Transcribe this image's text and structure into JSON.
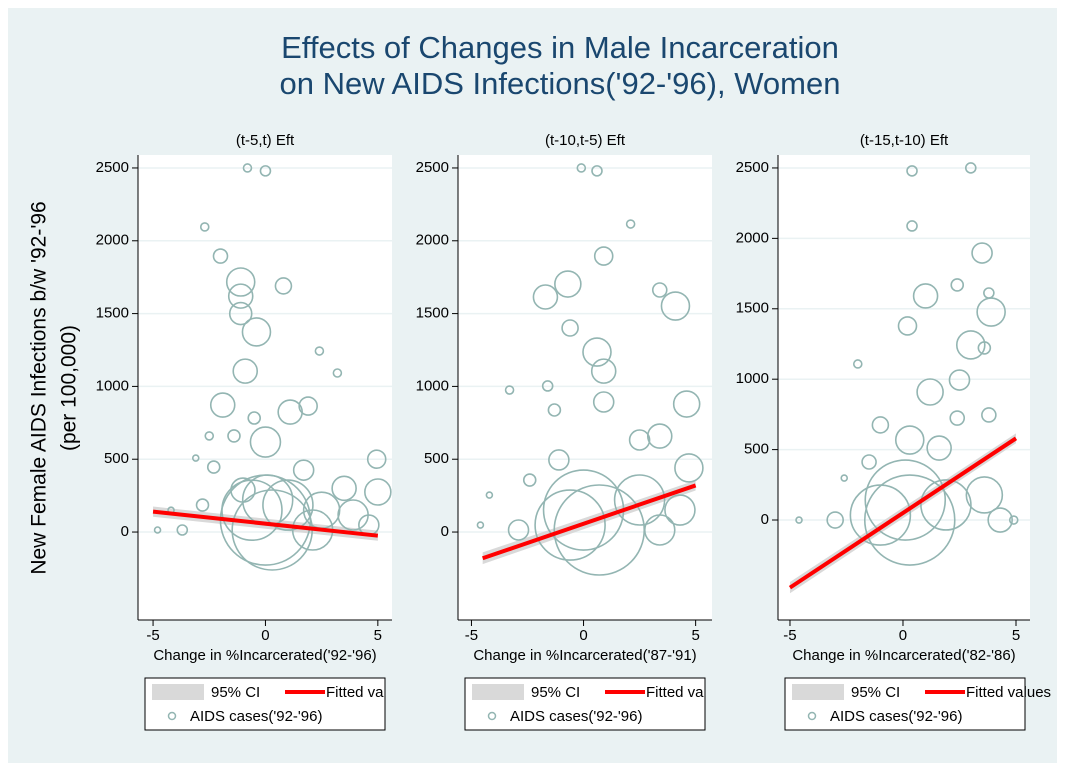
{
  "figure": {
    "title": [
      "Effects of Changes in Male Incarceration",
      "on New AIDS Infections('92-'96), Women"
    ],
    "y_label": [
      "New Female AIDS Infections b/w '92-'96",
      "(per 100,000)"
    ]
  },
  "chart_data": [
    {
      "type": "scatter",
      "title": "(t-5,t) Eft",
      "x_label": "Change in %Incarcerated('92-'96)",
      "xlim": [
        -5.67,
        5.63
      ],
      "ylim": [
        -604,
        2589
      ],
      "xticks": [
        -5,
        0,
        5
      ],
      "yticks": [
        0,
        500,
        1000,
        1500,
        2000,
        2500
      ],
      "grid": true,
      "series": [
        {
          "name": "95% CI",
          "color": "#d9d9d9",
          "x": [
            -5,
            5
          ],
          "lower": [
            105,
            -60
          ],
          "upper": [
            175,
            10
          ]
        },
        {
          "name": "Fitted values",
          "color": "#ff0000",
          "x": [
            -5,
            5
          ],
          "values": [
            140,
            -25
          ]
        },
        {
          "name": "AIDS cases('92-'96)",
          "color": "#93b5b2",
          "x": [
            -0.8,
            0,
            -2.7,
            -2,
            -1.1,
            -1.1,
            -1.1,
            -0.4,
            0.8,
            2.4,
            3.2,
            -0.9,
            -1.9,
            -0.5,
            1.1,
            1.9,
            -1.4,
            -2.5,
            0,
            -2.3,
            -3.1,
            4.95,
            5,
            3.5,
            1.7,
            -1,
            0.1,
            0,
            0.3,
            -0.6,
            1,
            2.5,
            3.9,
            2.1,
            -3.7,
            -4.8,
            -4.2,
            -2.8,
            4.6
          ],
          "values": [
            2500,
            2480,
            2095,
            1895,
            1717,
            1620,
            1500,
            1374,
            1690,
            1243,
            1092,
            1105,
            872,
            783,
            824,
            865,
            660,
            660,
            618,
            446,
            508,
            500,
            275,
            300,
            425,
            288,
            220,
            82,
            14,
            150,
            185,
            150,
            117,
            14,
            14,
            14,
            150,
            185,
            48
          ],
          "sizes": [
            16,
            25,
            16,
            49,
            196,
            144,
            121,
            196,
            64,
            16,
            16,
            144,
            144,
            36,
            144,
            81,
            36,
            16,
            225,
            36,
            9,
            81,
            169,
            144,
            100,
            144,
            625,
            2025,
            1600,
            900,
            625,
            324,
            225,
            400,
            25,
            9,
            9,
            36,
            100
          ]
        }
      ]
    },
    {
      "type": "scatter",
      "title": "(t-10,t-5) Eft",
      "x_label": "Change in %Incarcerated('87-'91)",
      "xlim": [
        -5.6,
        5.73
      ],
      "ylim": [
        -604,
        2589
      ],
      "xticks": [
        -5,
        0,
        5
      ],
      "yticks": [
        0,
        500,
        1000,
        1500,
        2000,
        2500
      ],
      "grid": true,
      "series": [
        {
          "name": "95% CI",
          "color": "#d9d9d9",
          "x": [
            -4.5,
            5
          ],
          "lower": [
            -220,
            285
          ],
          "upper": [
            -140,
            355
          ]
        },
        {
          "name": "Fitted values",
          "color": "#ff0000",
          "x": [
            -4.5,
            5
          ],
          "values": [
            -180,
            320
          ]
        },
        {
          "name": "AIDS cases('92-'96)",
          "color": "#93b5b2",
          "x": [
            -0.1,
            0.6,
            2.1,
            0.9,
            -0.7,
            -1.7,
            4.1,
            3.4,
            -0.6,
            0.6,
            0.9,
            -3.3,
            -1.6,
            4.6,
            -1.3,
            0.9,
            2.5,
            3.4,
            4.7,
            -1.1,
            -2.4,
            -4.2,
            0,
            0.7,
            -0.6,
            2.5,
            4.3,
            -2.9,
            -4.6,
            3.4
          ],
          "values": [
            2500,
            2480,
            2115,
            1895,
            1703,
            1614,
            1552,
            1662,
            1401,
            1236,
            1105,
            975,
            1003,
            879,
            838,
            893,
            632,
            659,
            440,
            495,
            357,
            254,
            151,
            14,
            48,
            220,
            151,
            14,
            48,
            14
          ],
          "sizes": [
            16,
            25,
            16,
            81,
            169,
            144,
            196,
            49,
            64,
            196,
            144,
            16,
            25,
            169,
            36,
            100,
            100,
            144,
            196,
            100,
            36,
            9,
            1600,
            2025,
            1225,
            625,
            225,
            100,
            9,
            225
          ]
        }
      ]
    },
    {
      "type": "scatter",
      "title": "(t-15,t-10) Eft",
      "x_label": "Change in %Incarcerated('82-'86)",
      "xlim": [
        -5.53,
        5.62
      ],
      "ylim": [
        -710,
        2592
      ],
      "xticks": [
        -5,
        0,
        5
      ],
      "yticks": [
        0,
        500,
        1000,
        1500,
        2000,
        2500
      ],
      "grid": true,
      "series": [
        {
          "name": "95% CI",
          "color": "#d9d9d9",
          "x": [
            -5,
            5
          ],
          "lower": [
            -520,
            545
          ],
          "upper": [
            -440,
            615
          ]
        },
        {
          "name": "Fitted values",
          "color": "#ff0000",
          "x": [
            -5,
            5
          ],
          "values": [
            -480,
            580
          ]
        },
        {
          "name": "AIDS cases('92-'96)",
          "color": "#93b5b2",
          "x": [
            3,
            0.4,
            0.4,
            3.5,
            1,
            3.8,
            2.4,
            3.9,
            0.2,
            3,
            3.6,
            -2,
            1.2,
            2.5,
            2.4,
            3.8,
            -1,
            0.3,
            1.6,
            -1.5,
            -2.6,
            0.1,
            0.3,
            -1,
            1.9,
            3.6,
            4.3,
            -3,
            -4.6,
            4.9
          ],
          "values": [
            2500,
            2479,
            2088,
            1896,
            1591,
            1612,
            1669,
            1477,
            1378,
            1243,
            1222,
            1108,
            909,
            994,
            724,
            746,
            675,
            568,
            511,
            412,
            298,
            142,
            0,
            35,
            107,
            178,
            0,
            0,
            0,
            0
          ],
          "sizes": [
            25,
            25,
            25,
            100,
            144,
            25,
            36,
            196,
            81,
            196,
            36,
            16,
            169,
            100,
            49,
            49,
            64,
            196,
            144,
            49,
            9,
            1600,
            2025,
            900,
            625,
            324,
            144,
            64,
            9,
            16
          ]
        }
      ]
    }
  ]
}
